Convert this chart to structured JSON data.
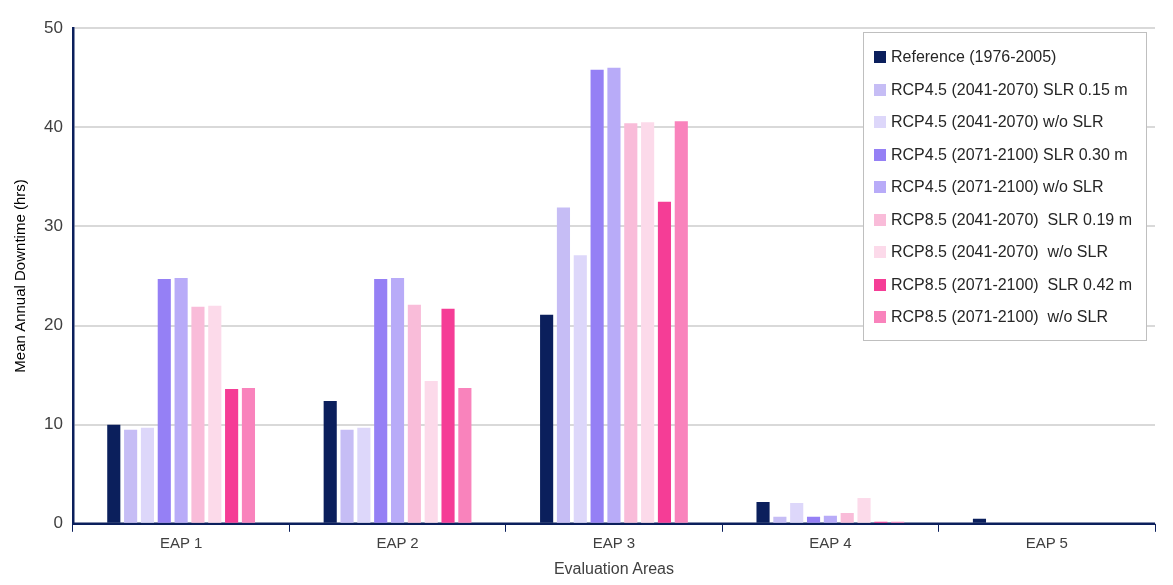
{
  "chart_data": {
    "type": "bar",
    "xlabel": "Evaluation Areas",
    "ylabel": "Mean Annual Downtime (hrs)",
    "categories": [
      "EAP 1",
      "EAP 2",
      "EAP 3",
      "EAP 4",
      "EAP 5"
    ],
    "ylim": [
      0,
      50
    ],
    "yticks": [
      0,
      10,
      20,
      30,
      40,
      50
    ],
    "grid": "y",
    "legend": "top right",
    "series": [
      {
        "name": "Reference (1976-2005)",
        "color": "#0b1f5c",
        "values": [
          10.0,
          12.4,
          21.1,
          2.2,
          0.5
        ]
      },
      {
        "name": "RCP4.5 (2041-2070) SLR 0.15 m",
        "color": "#c6bdf5",
        "values": [
          9.5,
          9.5,
          31.9,
          0.7,
          0
        ]
      },
      {
        "name": "RCP4.5 (2041-2070) w/o SLR",
        "color": "#ddd7fa",
        "values": [
          9.7,
          9.7,
          27.1,
          2.1,
          0
        ]
      },
      {
        "name": "RCP4.5 (2071-2100) SLR 0.30 m",
        "color": "#9580f5",
        "values": [
          24.7,
          24.7,
          45.8,
          0.7,
          0
        ]
      },
      {
        "name": "RCP4.5 (2071-2100) w/o SLR",
        "color": "#b8abf8",
        "values": [
          24.8,
          24.8,
          46.0,
          0.8,
          0
        ]
      },
      {
        "name": "RCP8.5 (2041-2070)  SLR 0.19 m",
        "color": "#f9bcd9",
        "values": [
          21.9,
          22.1,
          40.4,
          1.1,
          0
        ]
      },
      {
        "name": "RCP8.5 (2041-2070)  w/o SLR",
        "color": "#fcdaea",
        "values": [
          22.0,
          14.4,
          40.5,
          2.6,
          0.1
        ]
      },
      {
        "name": "RCP8.5 (2071-2100)  SLR 0.42 m",
        "color": "#f53d96",
        "values": [
          13.6,
          21.7,
          32.5,
          0.2,
          0
        ]
      },
      {
        "name": "RCP8.5 (2071-2100)  w/o SLR",
        "color": "#f983bc",
        "values": [
          13.7,
          13.7,
          40.6,
          0.2,
          0
        ]
      }
    ]
  }
}
